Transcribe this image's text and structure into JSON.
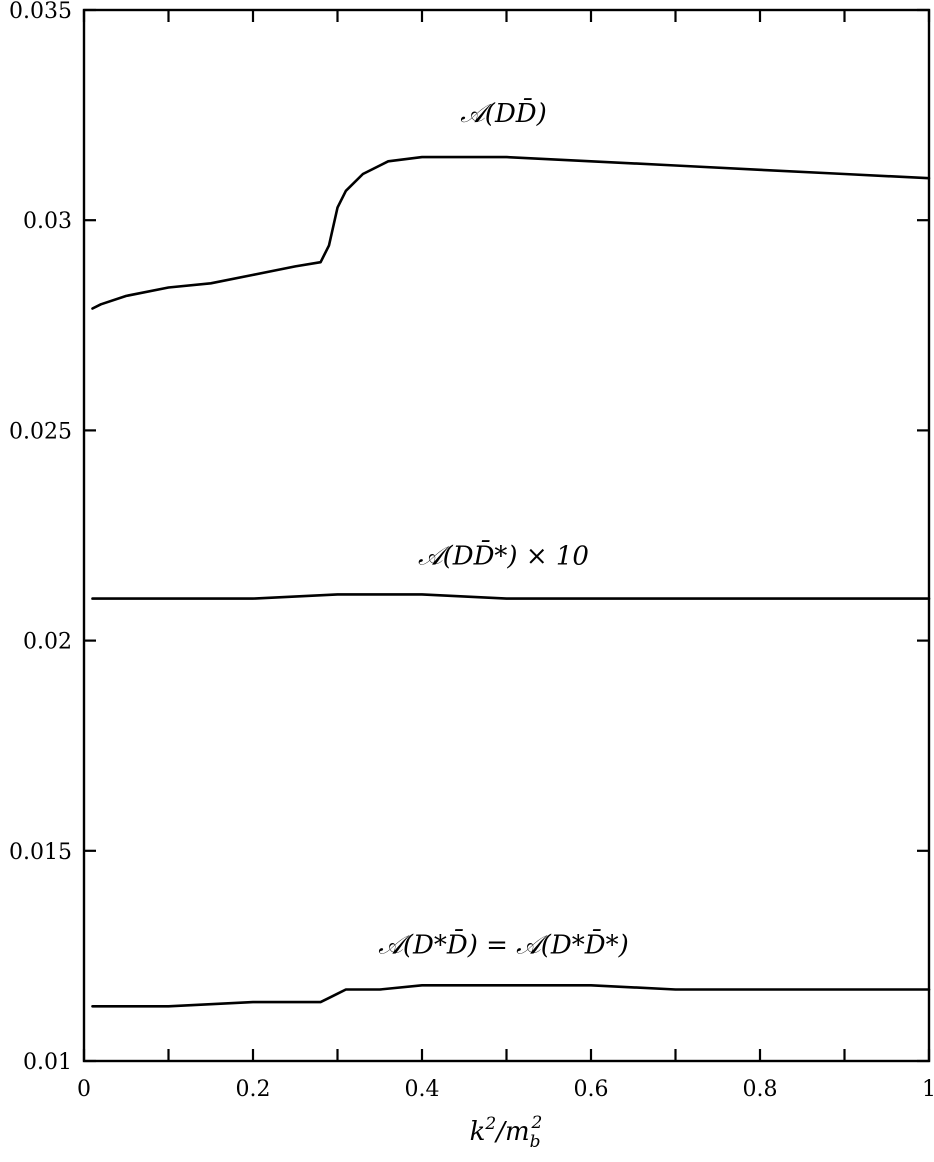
{
  "chart_data": {
    "type": "line",
    "xlabel": "k²/m_b²",
    "ylabel": "",
    "xlim": [
      0,
      1
    ],
    "ylim": [
      0.01,
      0.035
    ],
    "x_ticks": [
      0,
      0.2,
      0.4,
      0.6,
      0.8,
      1
    ],
    "x_tick_labels": [
      "0",
      "0.2",
      "0.4",
      "0.6",
      "0.8",
      "1"
    ],
    "x_minor_ticks": [
      0.1,
      0.3,
      0.5,
      0.7,
      0.9
    ],
    "y_ticks": [
      0.01,
      0.015,
      0.02,
      0.025,
      0.03,
      0.035
    ],
    "y_tick_labels": [
      "0.01",
      "0.015",
      "0.02",
      "0.025",
      "0.03",
      "0.035"
    ],
    "grid": false,
    "legend": "none",
    "series": [
      {
        "name": "𝒜(DD̄)",
        "x": [
          0.01,
          0.02,
          0.05,
          0.1,
          0.15,
          0.2,
          0.25,
          0.28,
          0.29,
          0.3,
          0.31,
          0.33,
          0.36,
          0.4,
          0.45,
          0.5,
          0.6,
          0.7,
          0.8,
          0.9,
          1.0
        ],
        "y": [
          0.0279,
          0.028,
          0.0282,
          0.0284,
          0.0285,
          0.0287,
          0.0289,
          0.029,
          0.0294,
          0.0303,
          0.0307,
          0.0311,
          0.0314,
          0.0315,
          0.0315,
          0.0315,
          0.0314,
          0.0313,
          0.0312,
          0.0311,
          0.031
        ]
      },
      {
        "name": "𝒜(DD̄*) × 10",
        "x": [
          0.01,
          0.1,
          0.2,
          0.3,
          0.4,
          0.5,
          0.6,
          0.7,
          0.8,
          0.9,
          1.0
        ],
        "y": [
          0.021,
          0.021,
          0.021,
          0.0211,
          0.0211,
          0.021,
          0.021,
          0.021,
          0.021,
          0.021,
          0.021
        ]
      },
      {
        "name": "𝒜(D*D̄) = 𝒜(D*D̄*)",
        "x": [
          0.01,
          0.1,
          0.2,
          0.28,
          0.29,
          0.3,
          0.31,
          0.35,
          0.4,
          0.5,
          0.6,
          0.7,
          0.8,
          0.9,
          1.0
        ],
        "y": [
          0.0113,
          0.0113,
          0.0114,
          0.0114,
          0.0115,
          0.0116,
          0.0117,
          0.0117,
          0.0118,
          0.0118,
          0.0118,
          0.0117,
          0.0117,
          0.0117,
          0.0117
        ]
      }
    ]
  }
}
